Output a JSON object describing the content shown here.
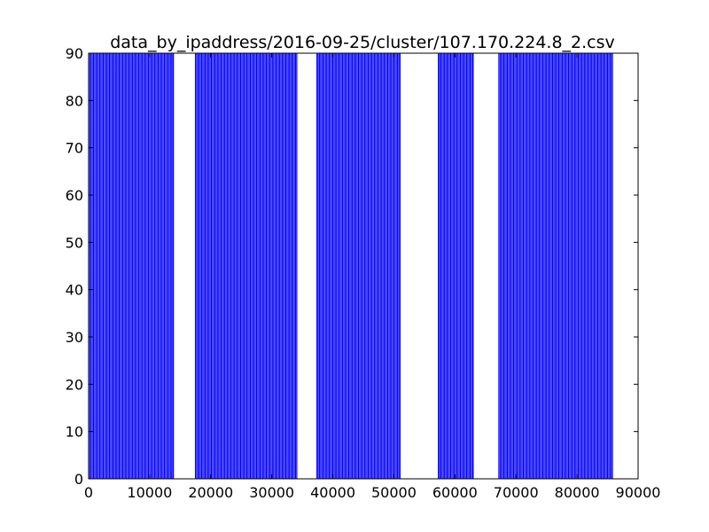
{
  "chart_data": {
    "type": "bar",
    "title": "data_by_ipaddress/2016-09-25/cluster/107.170.224.8_2.csv",
    "xlabel": "",
    "ylabel": "",
    "xlim": [
      0,
      90000
    ],
    "ylim": [
      0,
      90
    ],
    "xticks": [
      "0",
      "10000",
      "20000",
      "30000",
      "40000",
      "50000",
      "60000",
      "70000",
      "80000",
      "90000"
    ],
    "yticks": [
      "0",
      "10",
      "20",
      "30",
      "40",
      "50",
      "60",
      "70",
      "80",
      "90"
    ],
    "bar_color": "#0000ff",
    "bar_value": 90,
    "bar_edge_spacing": 200,
    "bar_clusters": [
      {
        "x_start": 0,
        "x_end": 13900
      },
      {
        "x_start": 17500,
        "x_end": 34100
      },
      {
        "x_start": 37400,
        "x_end": 51000
      },
      {
        "x_start": 57300,
        "x_end": 63000
      },
      {
        "x_start": 67200,
        "x_end": 85800
      }
    ],
    "grid": false
  }
}
